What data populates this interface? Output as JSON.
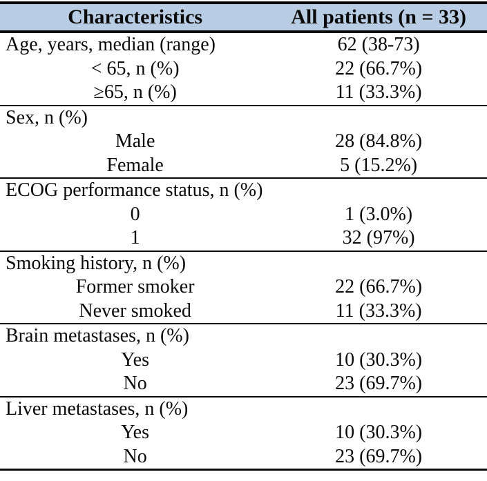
{
  "colors": {
    "header_bg": "#b8cce4",
    "border": "#0a0a0a",
    "page_bg": "#ffffff"
  },
  "table": {
    "header": {
      "col1": "Characteristics",
      "col2": "All patients (n = 33)"
    },
    "sections": [
      {
        "rows": [
          {
            "label": "Age, years, median (range)",
            "value": "62 (38-73)"
          },
          {
            "label": "< 65, n (%)",
            "value": "22 (66.7%)"
          },
          {
            "label": "≥65, n (%)",
            "value": "11 (33.3%)"
          }
        ]
      },
      {
        "rows": [
          {
            "label": "Sex, n (%)",
            "value": ""
          },
          {
            "label": "Male",
            "value": "28 (84.8%)"
          },
          {
            "label": "Female",
            "value": "5 (15.2%)"
          }
        ]
      },
      {
        "rows": [
          {
            "label": "ECOG performance status, n (%)",
            "value": ""
          },
          {
            "label": "0",
            "value": "1 (3.0%)"
          },
          {
            "label": "1",
            "value": "32 (97%)"
          }
        ]
      },
      {
        "rows": [
          {
            "label": "Smoking history, n (%)",
            "value": ""
          },
          {
            "label": "Former smoker",
            "value": "22 (66.7%)"
          },
          {
            "label": "Never smoked",
            "value": "11 (33.3%)"
          }
        ]
      },
      {
        "rows": [
          {
            "label": "Brain metastases, n (%)",
            "value": ""
          },
          {
            "label": "Yes",
            "value": "10 (30.3%)"
          },
          {
            "label": "No",
            "value": "23 (69.7%)"
          }
        ]
      },
      {
        "rows": [
          {
            "label": "Liver metastases, n (%)",
            "value": ""
          },
          {
            "label": "Yes",
            "value": "10 (30.3%)"
          },
          {
            "label": "No",
            "value": "23 (69.7%)"
          }
        ]
      }
    ]
  }
}
